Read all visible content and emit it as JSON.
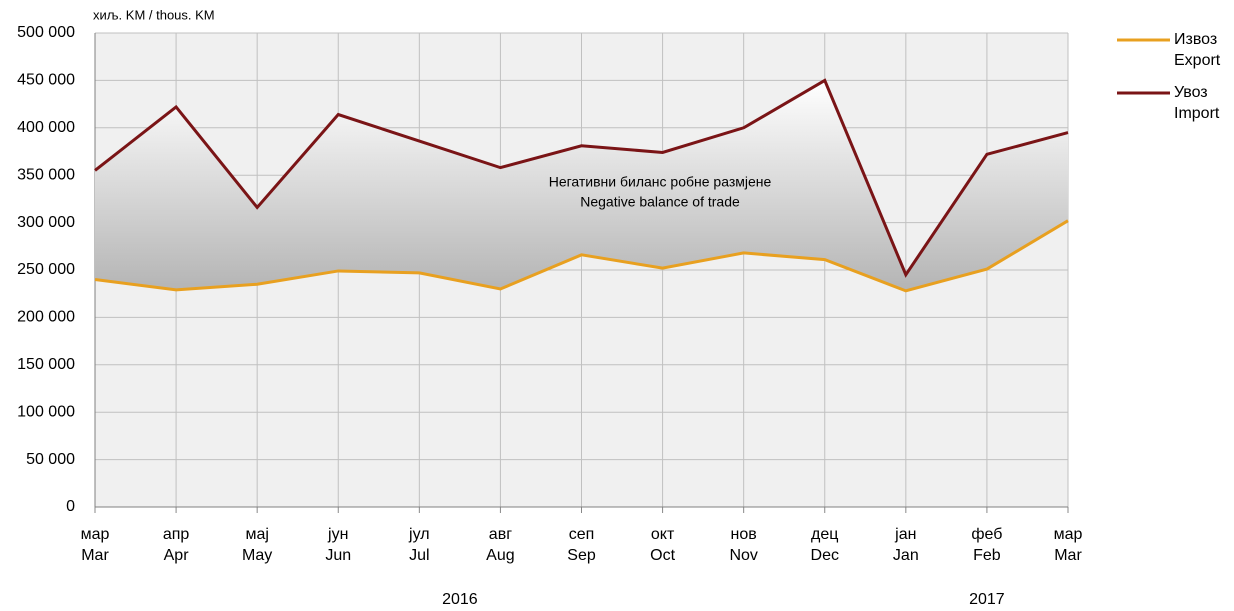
{
  "chart_data": {
    "type": "line",
    "unit_label": "хиљ. KM / thous. KM",
    "annotation": [
      "Негативни биланс робне размјене",
      "Negative balance of trade"
    ],
    "categories": [
      [
        "мар",
        "Mar"
      ],
      [
        "апр",
        "Apr"
      ],
      [
        "мај",
        "May"
      ],
      [
        "јун",
        "Jun"
      ],
      [
        "јул",
        "Jul"
      ],
      [
        "авг",
        "Aug"
      ],
      [
        "сеп",
        "Sep"
      ],
      [
        "окт",
        "Oct"
      ],
      [
        "нов",
        "Nov"
      ],
      [
        "дец",
        "Dec"
      ],
      [
        "јан",
        "Jan"
      ],
      [
        "феб",
        "Feb"
      ],
      [
        "мар",
        "Mar"
      ]
    ],
    "years": [
      "2016",
      "2017"
    ],
    "series": [
      {
        "name": [
          "Извоз",
          "Export"
        ],
        "color": "#e8a020",
        "values": [
          240000,
          229000,
          235000,
          249000,
          247000,
          230000,
          266000,
          252000,
          268000,
          261000,
          228000,
          251000,
          302000
        ]
      },
      {
        "name": [
          "Увоз",
          "Import"
        ],
        "color": "#7a1416",
        "values": [
          355000,
          422000,
          316000,
          414000,
          386000,
          358000,
          381000,
          374000,
          400000,
          450000,
          245000,
          372000,
          395000
        ]
      }
    ],
    "ylim": [
      0,
      500000
    ],
    "yticks": [
      0,
      {
        "value": 50000,
        "label": "50 000"
      },
      {
        "value": 100000,
        "label": "100 000"
      },
      {
        "value": 150000,
        "label": "150 000"
      },
      {
        "value": 200000,
        "label": "200 000"
      },
      {
        "value": 250000,
        "label": "250 000"
      },
      {
        "value": 300000,
        "label": "300 000"
      },
      {
        "value": 350000,
        "label": "350 000"
      },
      {
        "value": 400000,
        "label": "400 000"
      },
      {
        "value": 450000,
        "label": "450 000"
      },
      {
        "value": 500000,
        "label": "500 000"
      }
    ],
    "grid": true
  }
}
